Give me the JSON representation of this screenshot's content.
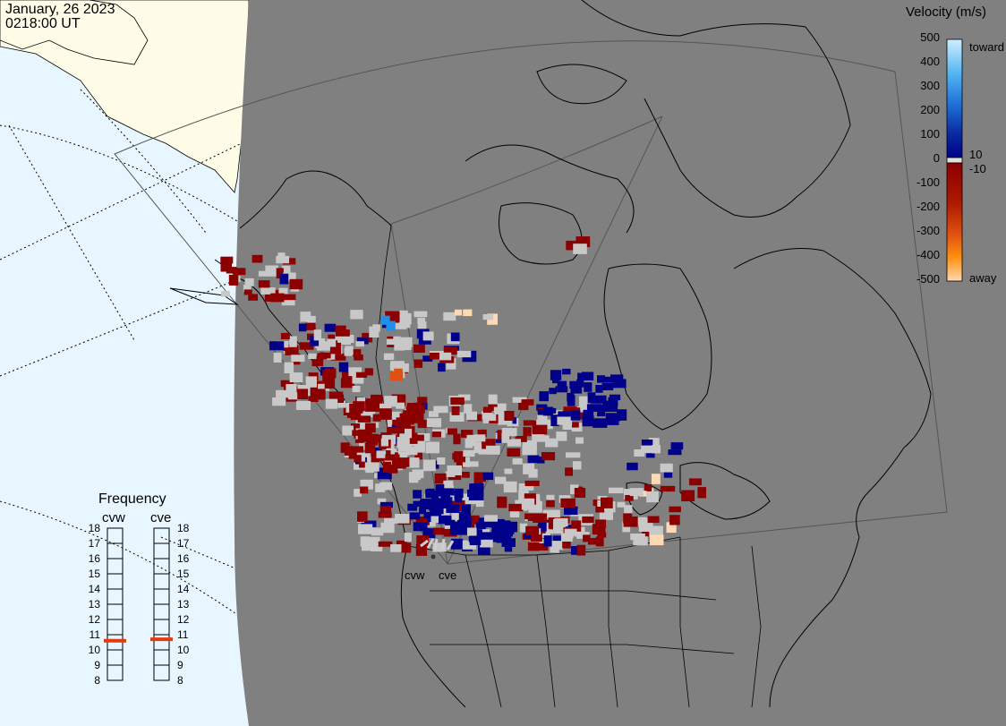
{
  "header": {
    "date": "January, 26 2023",
    "time": "0218:00 UT"
  },
  "velocity_scale": {
    "title": "Velocity (m/s)",
    "ticks": [
      "500",
      "400",
      "300",
      "200",
      "100",
      "10",
      "0",
      "-10",
      "-100",
      "-200",
      "-300",
      "-400",
      "-500"
    ],
    "label_toward": "toward",
    "label_away": "away",
    "colors": {
      "toward_high": "#cfeeff",
      "toward_mid": "#1e90e8",
      "toward_low": "#00008b",
      "zero": "#c8c8c8",
      "away_low": "#8b0000",
      "away_mid": "#e05010",
      "away_high": "#ffd9b3"
    }
  },
  "frequency_panel": {
    "title": "Frequency",
    "radars": [
      {
        "name": "cvw",
        "value_mhz": 10.6
      },
      {
        "name": "cve",
        "value_mhz": 10.7
      }
    ],
    "ticks": [
      "18",
      "17",
      "16",
      "15",
      "14",
      "13",
      "12",
      "11",
      "10",
      "9",
      "8"
    ],
    "marker_color": "#e03c10"
  },
  "radar_sites": [
    {
      "name": "cvw"
    },
    {
      "name": "cve"
    }
  ],
  "map": {
    "ocean_color": "#e8f6ff",
    "land_color": "#fffde8",
    "night_color": "#808080"
  }
}
